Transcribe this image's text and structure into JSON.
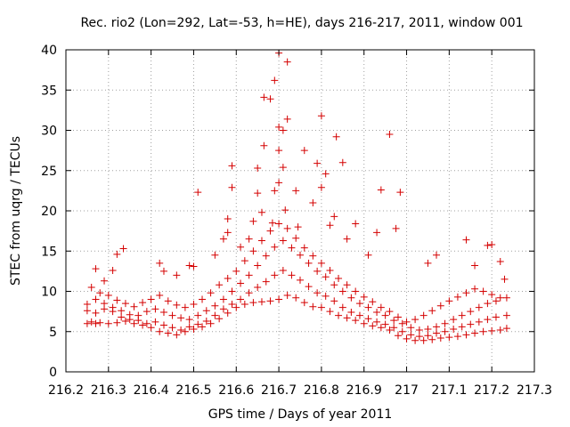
{
  "chart_data": {
    "type": "scatter",
    "title": "Rec. rio2 (Lon=292, Lat=-53, h=HE), days 216-217, 2011, window 001",
    "xlabel": "GPS time / Days of year 2011",
    "ylabel": "STEC from uqrg / TECUs",
    "xlim": [
      216.2,
      217.3
    ],
    "ylim": [
      0,
      40
    ],
    "xticks": [
      "216.2",
      "216.3",
      "216.4",
      "216.5",
      "216.6",
      "216.7",
      "216.8",
      "216.9",
      "217",
      "217.1",
      "217.2",
      "217.3"
    ],
    "yticks": [
      "0",
      "5",
      "10",
      "15",
      "20",
      "25",
      "30",
      "35",
      "40"
    ],
    "grid": true,
    "marker": "+",
    "color": "#d40000",
    "series": [
      {
        "points": [
          [
            216.25,
            6.0
          ],
          [
            216.26,
            6.2
          ],
          [
            216.27,
            6.0
          ],
          [
            216.28,
            6.1
          ],
          [
            216.3,
            6.0
          ],
          [
            216.32,
            6.1
          ],
          [
            216.34,
            6.3
          ],
          [
            216.36,
            6.0
          ],
          [
            216.38,
            5.8
          ],
          [
            216.4,
            5.5
          ],
          [
            216.42,
            5.0
          ],
          [
            216.44,
            4.8
          ],
          [
            216.46,
            4.6
          ],
          [
            216.48,
            5.0
          ],
          [
            216.5,
            5.3
          ],
          [
            216.52,
            5.6
          ],
          [
            216.54,
            6.0
          ],
          [
            216.56,
            6.6
          ],
          [
            216.58,
            7.3
          ],
          [
            216.6,
            8.0
          ],
          [
            216.62,
            8.4
          ],
          [
            216.64,
            8.6
          ],
          [
            216.66,
            8.7
          ],
          [
            216.68,
            8.8
          ],
          [
            216.7,
            9.0
          ],
          [
            216.72,
            9.5
          ],
          [
            216.74,
            9.2
          ],
          [
            216.76,
            8.6
          ],
          [
            216.78,
            8.1
          ],
          [
            216.8,
            8.0
          ],
          [
            216.82,
            7.5
          ],
          [
            216.84,
            7.0
          ],
          [
            216.86,
            6.7
          ],
          [
            216.88,
            6.4
          ],
          [
            216.9,
            6.0
          ],
          [
            216.92,
            5.7
          ],
          [
            216.94,
            5.5
          ],
          [
            216.96,
            5.2
          ],
          [
            216.98,
            4.5
          ],
          [
            217.0,
            4.1
          ],
          [
            217.02,
            3.9
          ],
          [
            217.04,
            3.9
          ],
          [
            217.06,
            4.0
          ],
          [
            217.08,
            4.2
          ],
          [
            217.1,
            4.3
          ],
          [
            217.12,
            4.4
          ],
          [
            217.14,
            4.6
          ],
          [
            217.16,
            4.8
          ],
          [
            217.18,
            5.0
          ],
          [
            217.2,
            5.1
          ],
          [
            217.22,
            5.2
          ],
          [
            217.235,
            5.4
          ],
          [
            216.25,
            7.6
          ],
          [
            216.27,
            7.3
          ],
          [
            216.29,
            7.8
          ],
          [
            216.31,
            7.5
          ],
          [
            216.33,
            6.8
          ],
          [
            216.35,
            6.5
          ],
          [
            216.37,
            6.4
          ],
          [
            216.39,
            6.0
          ],
          [
            216.41,
            6.2
          ],
          [
            216.43,
            5.8
          ],
          [
            216.45,
            5.5
          ],
          [
            216.47,
            5.2
          ],
          [
            216.49,
            5.6
          ],
          [
            216.51,
            5.9
          ],
          [
            216.53,
            6.3
          ],
          [
            216.55,
            7.0
          ],
          [
            216.57,
            7.8
          ],
          [
            216.59,
            8.4
          ],
          [
            216.61,
            9.0
          ],
          [
            216.63,
            9.8
          ],
          [
            216.65,
            10.5
          ],
          [
            216.67,
            11.2
          ],
          [
            216.69,
            12.0
          ],
          [
            216.71,
            12.6
          ],
          [
            216.73,
            12.0
          ],
          [
            216.75,
            11.4
          ],
          [
            216.77,
            10.6
          ],
          [
            216.79,
            9.8
          ],
          [
            216.81,
            9.4
          ],
          [
            216.83,
            8.8
          ],
          [
            216.85,
            8.0
          ],
          [
            216.87,
            7.4
          ],
          [
            216.89,
            7.0
          ],
          [
            216.91,
            6.6
          ],
          [
            216.93,
            6.2
          ],
          [
            216.95,
            5.9
          ],
          [
            216.97,
            5.5
          ],
          [
            216.99,
            5.0
          ],
          [
            217.01,
            4.6
          ],
          [
            217.03,
            4.4
          ],
          [
            217.05,
            4.5
          ],
          [
            217.07,
            4.8
          ],
          [
            217.09,
            5.0
          ],
          [
            217.11,
            5.3
          ],
          [
            217.13,
            5.6
          ],
          [
            217.15,
            5.9
          ],
          [
            217.17,
            6.2
          ],
          [
            217.19,
            6.5
          ],
          [
            217.21,
            6.8
          ],
          [
            217.235,
            7.0
          ],
          [
            216.25,
            8.4
          ],
          [
            216.27,
            9.0
          ],
          [
            216.29,
            8.5
          ],
          [
            216.31,
            8.0
          ],
          [
            216.33,
            7.6
          ],
          [
            216.35,
            7.1
          ],
          [
            216.37,
            7.0
          ],
          [
            216.39,
            7.5
          ],
          [
            216.41,
            7.8
          ],
          [
            216.43,
            7.4
          ],
          [
            216.45,
            7.0
          ],
          [
            216.47,
            6.7
          ],
          [
            216.49,
            6.5
          ],
          [
            216.51,
            7.0
          ],
          [
            216.53,
            7.6
          ],
          [
            216.55,
            8.2
          ],
          [
            216.57,
            9.0
          ],
          [
            216.59,
            10.0
          ],
          [
            216.61,
            11.0
          ],
          [
            216.63,
            12.0
          ],
          [
            216.65,
            13.2
          ],
          [
            216.67,
            14.4
          ],
          [
            216.69,
            15.5
          ],
          [
            216.71,
            16.3
          ],
          [
            216.73,
            15.4
          ],
          [
            216.75,
            14.5
          ],
          [
            216.77,
            13.5
          ],
          [
            216.79,
            12.5
          ],
          [
            216.81,
            11.8
          ],
          [
            216.83,
            10.8
          ],
          [
            216.85,
            10.0
          ],
          [
            216.87,
            9.2
          ],
          [
            216.89,
            8.5
          ],
          [
            216.91,
            8.0
          ],
          [
            216.93,
            7.4
          ],
          [
            216.95,
            7.0
          ],
          [
            216.97,
            6.4
          ],
          [
            216.99,
            6.0
          ],
          [
            217.01,
            5.5
          ],
          [
            217.03,
            5.2
          ],
          [
            217.05,
            5.3
          ],
          [
            217.07,
            5.6
          ],
          [
            217.09,
            6.0
          ],
          [
            217.11,
            6.5
          ],
          [
            217.13,
            7.0
          ],
          [
            217.15,
            7.5
          ],
          [
            217.17,
            8.0
          ],
          [
            217.19,
            8.5
          ],
          [
            217.21,
            8.8
          ],
          [
            217.235,
            9.2
          ],
          [
            216.26,
            10.5
          ],
          [
            216.28,
            9.8
          ],
          [
            216.3,
            9.5
          ],
          [
            216.32,
            8.9
          ],
          [
            216.34,
            8.5
          ],
          [
            216.36,
            8.1
          ],
          [
            216.38,
            8.6
          ],
          [
            216.4,
            9.0
          ],
          [
            216.42,
            9.5
          ],
          [
            216.44,
            8.8
          ],
          [
            216.46,
            8.3
          ],
          [
            216.48,
            8.0
          ],
          [
            216.5,
            8.4
          ],
          [
            216.52,
            9.0
          ],
          [
            216.54,
            9.8
          ],
          [
            216.56,
            10.8
          ],
          [
            216.58,
            11.6
          ],
          [
            216.6,
            12.5
          ],
          [
            216.62,
            13.8
          ],
          [
            216.64,
            15.0
          ],
          [
            216.66,
            16.3
          ],
          [
            216.68,
            17.5
          ],
          [
            216.7,
            18.4
          ],
          [
            216.72,
            17.8
          ],
          [
            216.74,
            16.6
          ],
          [
            216.76,
            15.4
          ],
          [
            216.78,
            14.4
          ],
          [
            216.8,
            13.5
          ],
          [
            216.82,
            12.6
          ],
          [
            216.84,
            11.6
          ],
          [
            216.86,
            10.8
          ],
          [
            216.88,
            10.0
          ],
          [
            216.9,
            9.3
          ],
          [
            216.92,
            8.7
          ],
          [
            216.94,
            8.0
          ],
          [
            216.96,
            7.5
          ],
          [
            216.98,
            6.8
          ],
          [
            217.0,
            6.2
          ],
          [
            217.02,
            6.5
          ],
          [
            217.04,
            7.0
          ],
          [
            217.06,
            7.6
          ],
          [
            217.08,
            8.2
          ],
          [
            217.1,
            8.8
          ],
          [
            217.12,
            9.3
          ],
          [
            217.14,
            9.8
          ],
          [
            217.16,
            10.3
          ],
          [
            217.18,
            10.0
          ],
          [
            217.2,
            9.6
          ],
          [
            217.22,
            9.2
          ],
          [
            216.27,
            12.8
          ],
          [
            216.29,
            11.3
          ],
          [
            216.31,
            12.6
          ],
          [
            216.32,
            14.6
          ],
          [
            216.335,
            15.3
          ],
          [
            216.42,
            13.5
          ],
          [
            216.43,
            12.5
          ],
          [
            216.46,
            12.0
          ],
          [
            216.49,
            13.2
          ],
          [
            216.5,
            13.1
          ],
          [
            216.51,
            22.3
          ],
          [
            216.55,
            14.5
          ],
          [
            216.57,
            16.5
          ],
          [
            216.58,
            17.3
          ],
          [
            216.58,
            19.0
          ],
          [
            216.59,
            22.9
          ],
          [
            216.59,
            25.6
          ],
          [
            216.61,
            15.5
          ],
          [
            216.63,
            16.5
          ],
          [
            216.64,
            18.7
          ],
          [
            216.65,
            22.2
          ],
          [
            216.65,
            25.3
          ],
          [
            216.66,
            19.8
          ],
          [
            216.665,
            28.1
          ],
          [
            216.665,
            34.1
          ],
          [
            216.68,
            33.9
          ],
          [
            216.685,
            18.5
          ],
          [
            216.69,
            22.5
          ],
          [
            216.69,
            36.2
          ],
          [
            216.7,
            23.5
          ],
          [
            216.7,
            27.5
          ],
          [
            216.7,
            30.4
          ],
          [
            216.7,
            39.6
          ],
          [
            216.71,
            25.4
          ],
          [
            216.71,
            30.0
          ],
          [
            216.715,
            20.1
          ],
          [
            216.72,
            31.4
          ],
          [
            216.72,
            38.5
          ],
          [
            216.74,
            22.5
          ],
          [
            216.745,
            18.0
          ],
          [
            216.76,
            27.5
          ],
          [
            216.78,
            21.0
          ],
          [
            216.79,
            25.9
          ],
          [
            216.8,
            22.9
          ],
          [
            216.8,
            31.8
          ],
          [
            216.81,
            24.6
          ],
          [
            216.82,
            18.2
          ],
          [
            216.83,
            19.3
          ],
          [
            216.835,
            29.2
          ],
          [
            216.85,
            26.0
          ],
          [
            216.86,
            16.5
          ],
          [
            216.88,
            18.4
          ],
          [
            216.91,
            14.5
          ],
          [
            216.93,
            17.3
          ],
          [
            216.94,
            22.6
          ],
          [
            216.96,
            29.5
          ],
          [
            216.975,
            17.8
          ],
          [
            216.985,
            22.3
          ],
          [
            217.05,
            13.5
          ],
          [
            217.07,
            14.5
          ],
          [
            217.14,
            16.4
          ],
          [
            217.16,
            13.2
          ],
          [
            217.19,
            15.7
          ],
          [
            217.2,
            15.8
          ],
          [
            217.22,
            13.7
          ],
          [
            217.23,
            11.5
          ]
        ]
      }
    ]
  }
}
